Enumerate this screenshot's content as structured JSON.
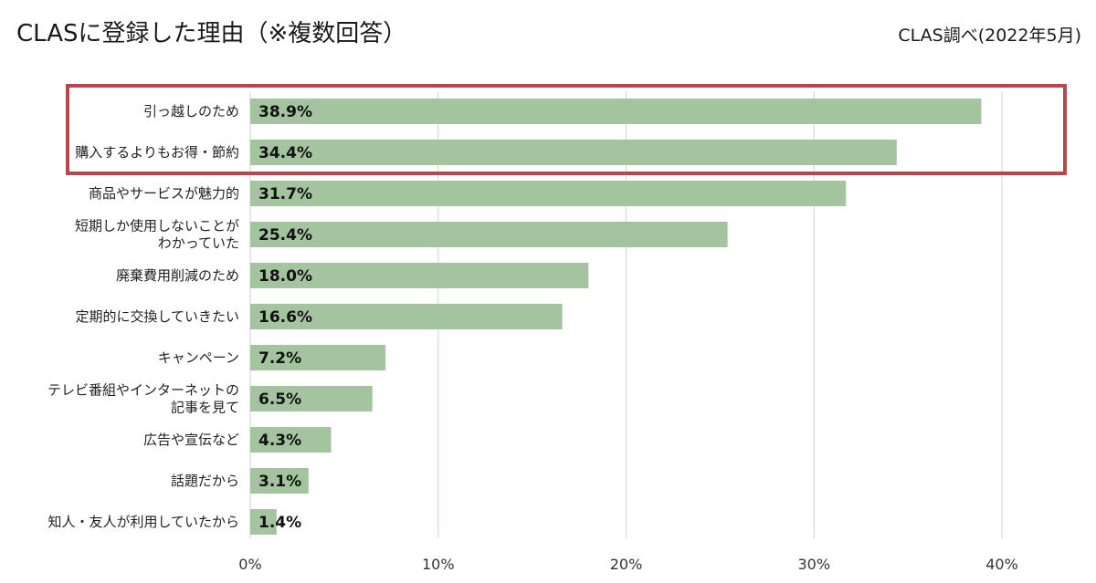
{
  "header": {
    "title": "CLASに登録した理由（※複数回答）",
    "source": "CLAS調べ(2022年5月)"
  },
  "colors": {
    "bar": "#a3c49e",
    "highlight_box": "#b5474e",
    "grid": "#d9d9d9"
  },
  "chart_data": {
    "type": "bar",
    "orientation": "horizontal",
    "categories": [
      [
        "引っ越しのため"
      ],
      [
        "購入するよりもお得・節約"
      ],
      [
        "商品やサービスが魅力的"
      ],
      [
        "短期しか使用しないことが",
        "わかっていた"
      ],
      [
        "廃棄費用削減のため"
      ],
      [
        "定期的に交換していきたい"
      ],
      [
        "キャンペーン"
      ],
      [
        "テレビ番組やインターネットの",
        "記事を見て"
      ],
      [
        "広告や宣伝など"
      ],
      [
        "話題だから"
      ],
      [
        "知人・友人が利用していたから"
      ]
    ],
    "values": [
      38.9,
      34.4,
      31.7,
      25.4,
      18.0,
      16.6,
      7.2,
      6.5,
      4.3,
      3.1,
      1.4
    ],
    "value_labels": [
      "38.9%",
      "34.4%",
      "31.7%",
      "25.4%",
      "18.0%",
      "16.6%",
      "7.2%",
      "6.5%",
      "4.3%",
      "3.1%",
      "1.4%"
    ],
    "xlim": [
      0,
      40
    ],
    "xticks": [
      0,
      10,
      20,
      30,
      40
    ],
    "xtick_labels": [
      "0%",
      "10%",
      "20%",
      "30%",
      "40%"
    ],
    "grid": true,
    "highlighted_categories": [
      0,
      1
    ]
  }
}
